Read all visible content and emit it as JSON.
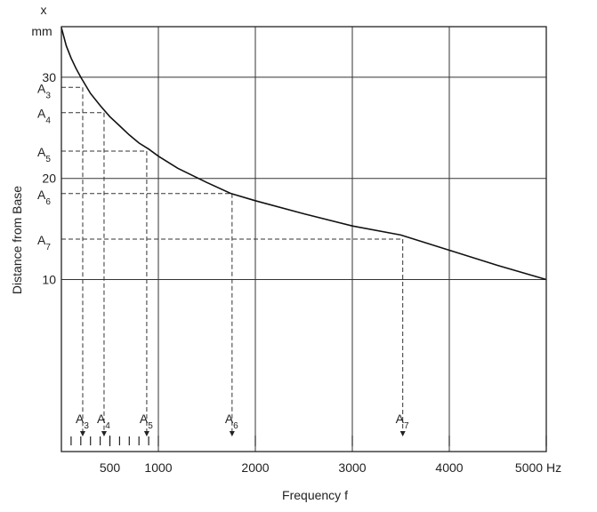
{
  "chart_data": {
    "type": "line",
    "title": "",
    "xlabel": "Frequency f",
    "ylabel": "Distance from Base",
    "xlim": [
      0,
      5000
    ],
    "ylim": [
      -7,
      35
    ],
    "x_unit": "Hz",
    "y_top_labels": [
      "x",
      "mm"
    ],
    "grid": true,
    "x_ticks": [
      {
        "value": 500,
        "label": "500"
      },
      {
        "value": 1000,
        "label": "1000"
      },
      {
        "value": 2000,
        "label": "2000"
      },
      {
        "value": 3000,
        "label": "3000"
      },
      {
        "value": 4000,
        "label": "4000"
      },
      {
        "value": 5000,
        "label": "5000 Hz"
      }
    ],
    "x_minor_ticks": [
      100,
      200,
      300,
      400,
      500,
      600,
      700,
      800,
      900
    ],
    "y_ticks": [
      {
        "value": 10,
        "label": "10"
      },
      {
        "value": 20,
        "label": "20"
      },
      {
        "value": 30,
        "label": "30"
      }
    ],
    "x_grid": [
      1000,
      2000,
      3000,
      4000
    ],
    "y_grid": [
      10,
      20,
      30
    ],
    "series": [
      {
        "x": [
          0,
          50,
          100,
          150,
          200,
          300,
          400,
          500,
          600,
          700,
          800,
          900,
          1000,
          1200,
          1500,
          1750,
          2000,
          2500,
          3000,
          3500,
          4000,
          4500,
          5000
        ],
        "y": [
          34.9,
          33.1,
          31.9,
          30.9,
          30.0,
          28.4,
          27.2,
          26.1,
          25.2,
          24.3,
          23.5,
          22.9,
          22.2,
          21.0,
          19.6,
          18.5,
          17.8,
          16.5,
          15.3,
          14.4,
          12.9,
          11.4,
          10.0
        ]
      }
    ],
    "notes": [
      {
        "letter": "A",
        "sub": "3",
        "f": 220,
        "x": 29.0
      },
      {
        "letter": "A",
        "sub": "4",
        "f": 440,
        "x": 26.5
      },
      {
        "letter": "A",
        "sub": "5",
        "f": 880,
        "x": 22.7
      },
      {
        "letter": "A",
        "sub": "6",
        "f": 1760,
        "x": 18.5
      },
      {
        "letter": "A",
        "sub": "7",
        "f": 3520,
        "x": 14.0
      }
    ]
  }
}
